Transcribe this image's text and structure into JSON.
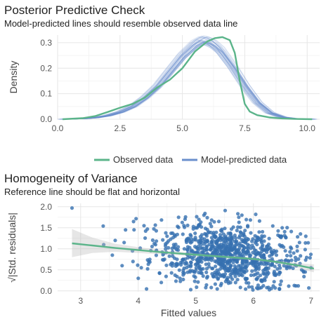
{
  "chart_data": [
    {
      "type": "line",
      "title": "Posterior Predictive Check",
      "subtitle": "Model-predicted lines should resemble observed data line",
      "xlabel": "",
      "ylabel": "Density",
      "xlim": [
        0,
        10.5
      ],
      "ylim": [
        0,
        0.33
      ],
      "xticks": [
        0.0,
        2.5,
        5.0,
        7.5,
        10.0
      ],
      "xtick_labels": [
        "0.0",
        "2.5",
        "5.0",
        "7.5",
        "10.0"
      ],
      "yticks": [
        0.0,
        0.1,
        0.2,
        0.3
      ],
      "ytick_labels": [
        "0.0",
        "0.1",
        "0.2",
        "0.3"
      ],
      "grid": true,
      "legend_position": "bottom",
      "series": [
        {
          "name": "Observed data",
          "color": "#5bb48a",
          "x": [
            0.2,
            1.0,
            1.5,
            2.0,
            2.5,
            3.0,
            3.5,
            4.0,
            4.5,
            5.0,
            5.5,
            6.0,
            6.3,
            6.6,
            6.9,
            7.1,
            7.3,
            7.5,
            7.7,
            8.0,
            8.5,
            9.0,
            9.5,
            10.2
          ],
          "y": [
            0.0,
            0.004,
            0.012,
            0.028,
            0.045,
            0.06,
            0.085,
            0.125,
            0.155,
            0.2,
            0.265,
            0.305,
            0.318,
            0.322,
            0.31,
            0.26,
            0.15,
            0.06,
            0.03,
            0.016,
            0.007,
            0.003,
            0.001,
            0.0
          ]
        },
        {
          "name": "Model-predicted data",
          "color": "#6a8fcc",
          "x": [
            0.2,
            1.0,
            1.5,
            2.0,
            2.5,
            3.0,
            3.5,
            4.0,
            4.5,
            5.0,
            5.5,
            5.8,
            6.0,
            6.2,
            6.5,
            7.0,
            7.5,
            8.0,
            8.5,
            9.0,
            9.5,
            10.2
          ],
          "y": [
            0.0,
            0.002,
            0.006,
            0.014,
            0.028,
            0.05,
            0.085,
            0.13,
            0.19,
            0.25,
            0.295,
            0.31,
            0.305,
            0.295,
            0.27,
            0.205,
            0.13,
            0.065,
            0.025,
            0.008,
            0.002,
            0.0
          ]
        }
      ]
    },
    {
      "type": "scatter",
      "title": "Homogeneity of Variance",
      "subtitle": "Reference line should be flat and horizontal",
      "xlabel": "Fitted values",
      "ylabel": "√|Std. residuals|",
      "xlim": [
        2.6,
        7.15
      ],
      "ylim": [
        -0.02,
        2.08
      ],
      "xticks": [
        3,
        4,
        5,
        6,
        7
      ],
      "xtick_labels": [
        "3",
        "4",
        "5",
        "6",
        "7"
      ],
      "yticks": [
        0.0,
        0.5,
        1.0,
        1.5,
        2.0
      ],
      "ytick_labels": [
        "0.0",
        "0.5",
        "1.0",
        "1.5",
        "2.0"
      ],
      "grid": true,
      "point_color": "#3670b0",
      "smooth_color": "#5bb48a",
      "smooth_line": {
        "x": [
          2.85,
          3.2,
          3.6,
          4.0,
          4.4,
          4.8,
          5.2,
          5.6,
          6.0,
          6.4,
          6.8,
          7.05
        ],
        "y": [
          1.13,
          1.08,
          1.02,
          0.97,
          0.92,
          0.88,
          0.84,
          0.8,
          0.76,
          0.69,
          0.6,
          0.53
        ]
      },
      "ci_band": {
        "x": [
          2.85,
          3.2,
          3.6,
          4.0,
          4.4,
          4.8,
          5.2,
          5.6,
          6.0,
          6.4,
          6.8,
          7.05
        ],
        "lower": [
          0.8,
          0.9,
          0.93,
          0.9,
          0.87,
          0.84,
          0.81,
          0.77,
          0.73,
          0.66,
          0.53,
          0.44
        ],
        "upper": [
          1.47,
          1.27,
          1.12,
          1.04,
          0.97,
          0.92,
          0.87,
          0.83,
          0.79,
          0.72,
          0.66,
          0.63
        ]
      },
      "points": {
        "x": [
          2.85,
          3.4,
          3.55,
          3.6,
          3.72,
          3.78,
          3.9,
          4.0,
          4.1,
          4.2,
          4.3,
          4.4,
          4.5,
          4.6,
          4.7,
          4.8,
          4.9,
          5.0,
          5.1,
          5.2,
          5.3,
          5.4,
          5.5,
          5.6,
          5.7,
          5.8,
          5.9,
          6.0,
          6.1,
          6.2,
          6.3,
          6.4,
          6.5,
          6.6,
          6.7,
          6.8,
          6.9,
          7.0
        ],
        "y": [
          1.97,
          1.1,
          0.85,
          1.2,
          0.6,
          1.45,
          0.95,
          0.3,
          1.55,
          0.75,
          1.1,
          0.2,
          1.3,
          0.65,
          1.75,
          1.0,
          0.45,
          1.5,
          0.8,
          1.2,
          0.35,
          1.65,
          0.9,
          1.1,
          0.55,
          1.8,
          0.95,
          0.7,
          1.4,
          0.25,
          1.0,
          0.85,
          1.5,
          0.6,
          0.9,
          1.15,
          0.45,
          0.55
        ]
      }
    }
  ]
}
